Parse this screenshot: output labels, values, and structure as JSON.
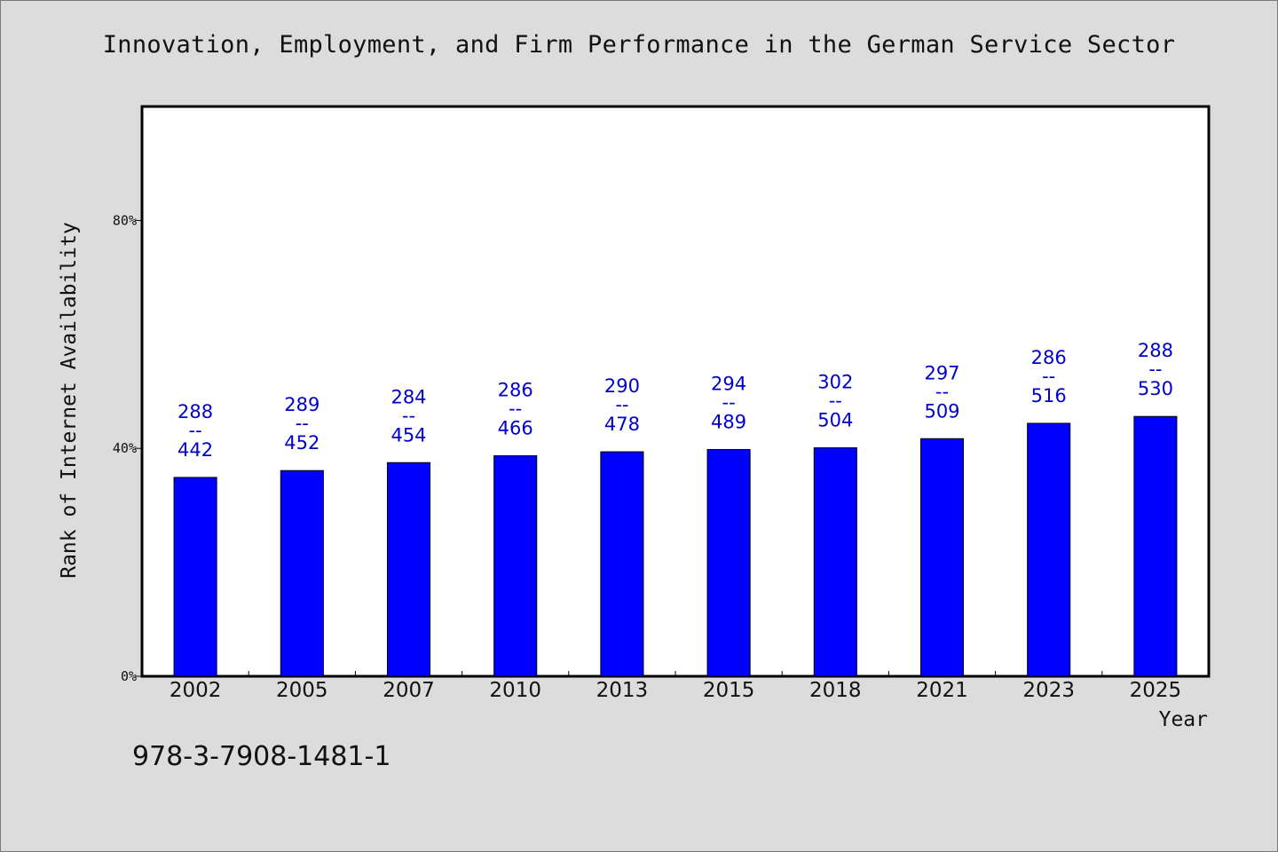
{
  "chart_data": {
    "type": "bar",
    "title": "Innovation, Employment, and Firm Performance in the German Service Sector",
    "xlabel": "Year",
    "ylabel": "Rank of Internet Availability",
    "categories": [
      "2002",
      "2005",
      "2007",
      "2010",
      "2013",
      "2015",
      "2018",
      "2021",
      "2023",
      "2025"
    ],
    "values": [
      34.9,
      36.1,
      37.5,
      38.7,
      39.4,
      39.8,
      40.1,
      41.7,
      44.4,
      45.6
    ],
    "value_unit": "%",
    "data_labels": [
      {
        "top": "288",
        "mid": "--",
        "bottom": "442"
      },
      {
        "top": "289",
        "mid": "--",
        "bottom": "452"
      },
      {
        "top": "284",
        "mid": "--",
        "bottom": "454"
      },
      {
        "top": "286",
        "mid": "--",
        "bottom": "466"
      },
      {
        "top": "290",
        "mid": "--",
        "bottom": "478"
      },
      {
        "top": "294",
        "mid": "--",
        "bottom": "489"
      },
      {
        "top": "302",
        "mid": "--",
        "bottom": "504"
      },
      {
        "top": "297",
        "mid": "--",
        "bottom": "509"
      },
      {
        "top": "286",
        "mid": "--",
        "bottom": "516"
      },
      {
        "top": "288",
        "mid": "--",
        "bottom": "530"
      }
    ],
    "yticks": [
      {
        "value": 0,
        "label": "0%"
      },
      {
        "value": 40,
        "label": "40%"
      },
      {
        "value": 80,
        "label": "80%"
      }
    ],
    "ylim": [
      0,
      100
    ],
    "grid": false,
    "legend": "none",
    "colors": {
      "bar": "#0000ff",
      "label": "#0000cc",
      "plot_bg": "#ffffff",
      "page_bg": "#dcdcdc"
    }
  },
  "footer": {
    "isbn": "978-3-7908-1481-1"
  }
}
